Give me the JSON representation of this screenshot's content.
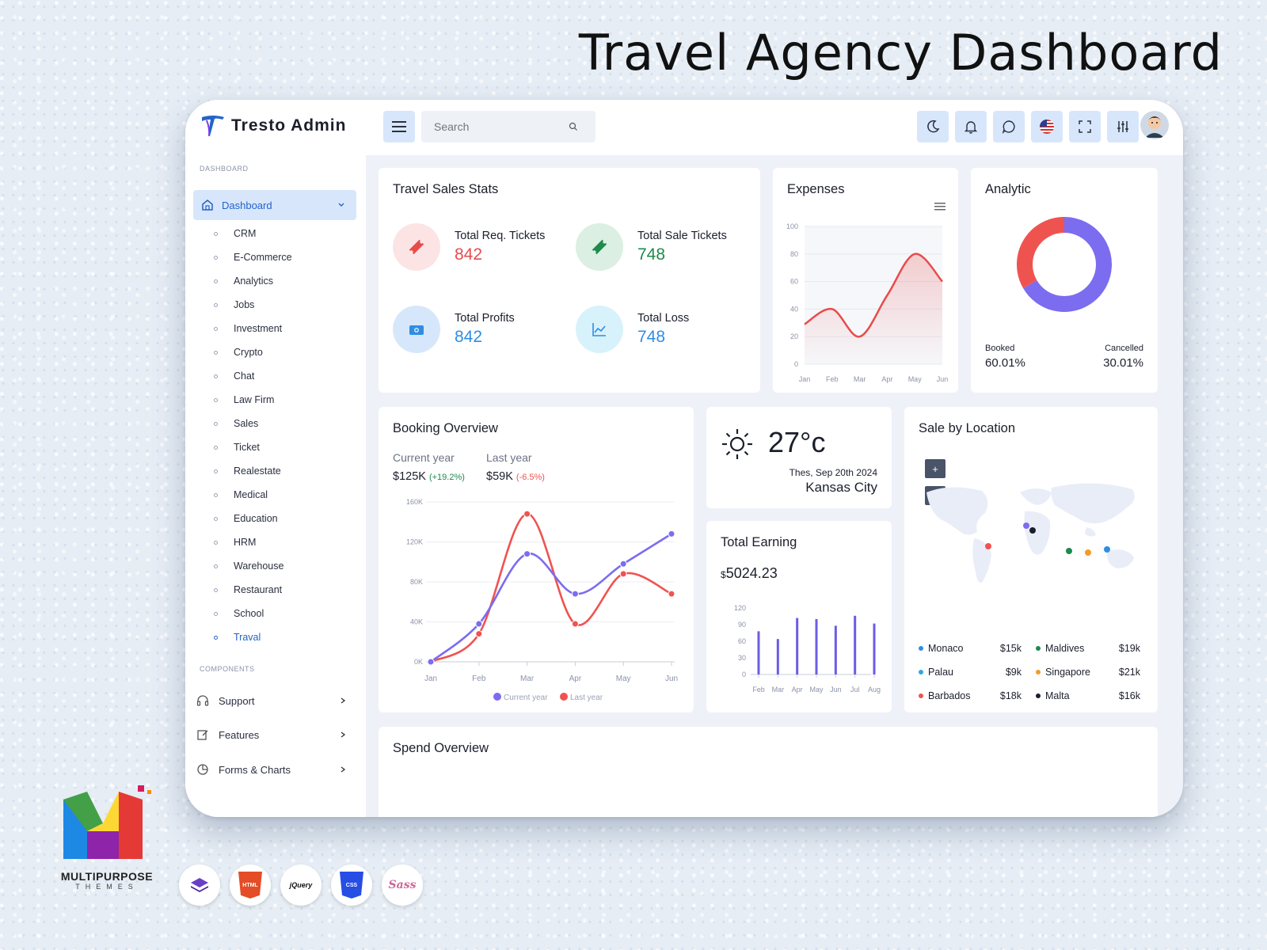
{
  "hero_title": "Travel Agency Dashboard",
  "app": {
    "name": "Tresto Admin"
  },
  "search": {
    "placeholder": "Search"
  },
  "sidebar": {
    "section_dashboard": "DASHBOARD",
    "dashboard_label": "Dashboard",
    "sub_items": [
      "CRM",
      "E-Commerce",
      "Analytics",
      "Jobs",
      "Investment",
      "Crypto",
      "Chat",
      "Law Firm",
      "Sales",
      "Ticket",
      "Realestate",
      "Medical",
      "Education",
      "HRM",
      "Warehouse",
      "Restaurant",
      "School",
      "Traval"
    ],
    "active_item": "Traval",
    "section_components": "COMPONENTS",
    "components": [
      {
        "label": "Support",
        "icon": "headset-icon"
      },
      {
        "label": "Features",
        "icon": "edit-icon"
      },
      {
        "label": "Forms & Charts",
        "icon": "pie-chart-icon"
      }
    ]
  },
  "travel_sales": {
    "title": "Travel Sales Stats",
    "stats": [
      {
        "label": "Total Req. Tickets",
        "value": "842",
        "color": "#e74c4c",
        "bg": "#fde4e4",
        "icon": "ticket-icon"
      },
      {
        "label": "Total Sale Tickets",
        "value": "748",
        "color": "#1e8a4c",
        "bg": "#dbefe3",
        "icon": "ticket-icon"
      },
      {
        "label": "Total Profits",
        "value": "842",
        "color": "#2f8de4",
        "bg": "#d7e7fb",
        "icon": "wallet-icon"
      },
      {
        "label": "Total Loss",
        "value": "748",
        "color": "#2f8de4",
        "bg": "#d8f2fb",
        "icon": "chart-icon"
      }
    ]
  },
  "expenses": {
    "title": "Expenses",
    "chart_data": {
      "type": "area",
      "categories": [
        "Jan",
        "Feb",
        "Mar",
        "Apr",
        "May",
        "Jun"
      ],
      "values": [
        29,
        40,
        20,
        50,
        80,
        60
      ],
      "ylim": [
        0,
        100
      ],
      "yticks": [
        "100",
        "80",
        "60",
        "40",
        "20",
        "0"
      ],
      "color": "#e74c4c"
    }
  },
  "analytic": {
    "title": "Analytic",
    "chart_data": {
      "type": "pie",
      "labels": [
        "Booked",
        "Cancelled"
      ],
      "values": [
        60.01,
        30.01
      ],
      "colors": [
        "#7b6cf0",
        "#ef5350"
      ]
    },
    "booked_label": "Booked",
    "booked_value": "60.01%",
    "cancelled_label": "Cancelled",
    "cancelled_value": "30.01%"
  },
  "booking": {
    "title": "Booking Overview",
    "current_label": "Current year",
    "current_value": "$125K",
    "current_change": "(+19.2%)",
    "last_label": "Last year",
    "last_value": "$59K",
    "last_change": "(-6.5%)",
    "chart_data": {
      "type": "line",
      "categories": [
        "Jan",
        "Feb",
        "Mar",
        "Apr",
        "May",
        "Jun"
      ],
      "yticks": [
        "160K",
        "120K",
        "80K",
        "40K",
        "0K"
      ],
      "ylim": [
        0,
        160
      ],
      "series": [
        {
          "name": "Current year",
          "values": [
            0,
            38,
            108,
            68,
            98,
            128
          ],
          "color": "#7b6cf0"
        },
        {
          "name": "Last year",
          "values": [
            0,
            28,
            148,
            38,
            88,
            68
          ],
          "color": "#ef5350"
        }
      ]
    }
  },
  "weather": {
    "temp": "27°c",
    "date": "Thes, Sep 20th 2024",
    "city": "Kansas City"
  },
  "earning": {
    "title": "Total Earning",
    "currency": "$",
    "amount": "5024.23",
    "chart_data": {
      "type": "bar",
      "categories": [
        "Feb",
        "Mar",
        "Apr",
        "May",
        "Jun",
        "Jul",
        "Aug"
      ],
      "values": [
        78,
        64,
        102,
        100,
        88,
        106,
        92
      ],
      "yticks": [
        "120",
        "90",
        "60",
        "30",
        "0"
      ],
      "ylim": [
        0,
        120
      ],
      "color": "#6b5ce7"
    }
  },
  "location": {
    "title": "Sale by Location",
    "zoom_in": "+",
    "zoom_out": "-",
    "items": [
      {
        "name": "Monaco",
        "value": "$15k",
        "color": "#2f8de4"
      },
      {
        "name": "Maldives",
        "value": "$19k",
        "color": "#1e8a4c"
      },
      {
        "name": "Palau",
        "value": "$9k",
        "color": "#2fa6e4"
      },
      {
        "name": "Singapore",
        "value": "$21k",
        "color": "#f29b2b"
      },
      {
        "name": "Barbados",
        "value": "$18k",
        "color": "#ef5350"
      },
      {
        "name": "Malta",
        "value": "$16k",
        "color": "#1b1f2b"
      }
    ]
  },
  "spend": {
    "title": "Spend Overview"
  },
  "brand": {
    "name": "MULTIPURPOSE",
    "sub": "THEMES"
  },
  "techs": [
    "HTML",
    "jQuery",
    "CSS",
    "Sass"
  ]
}
